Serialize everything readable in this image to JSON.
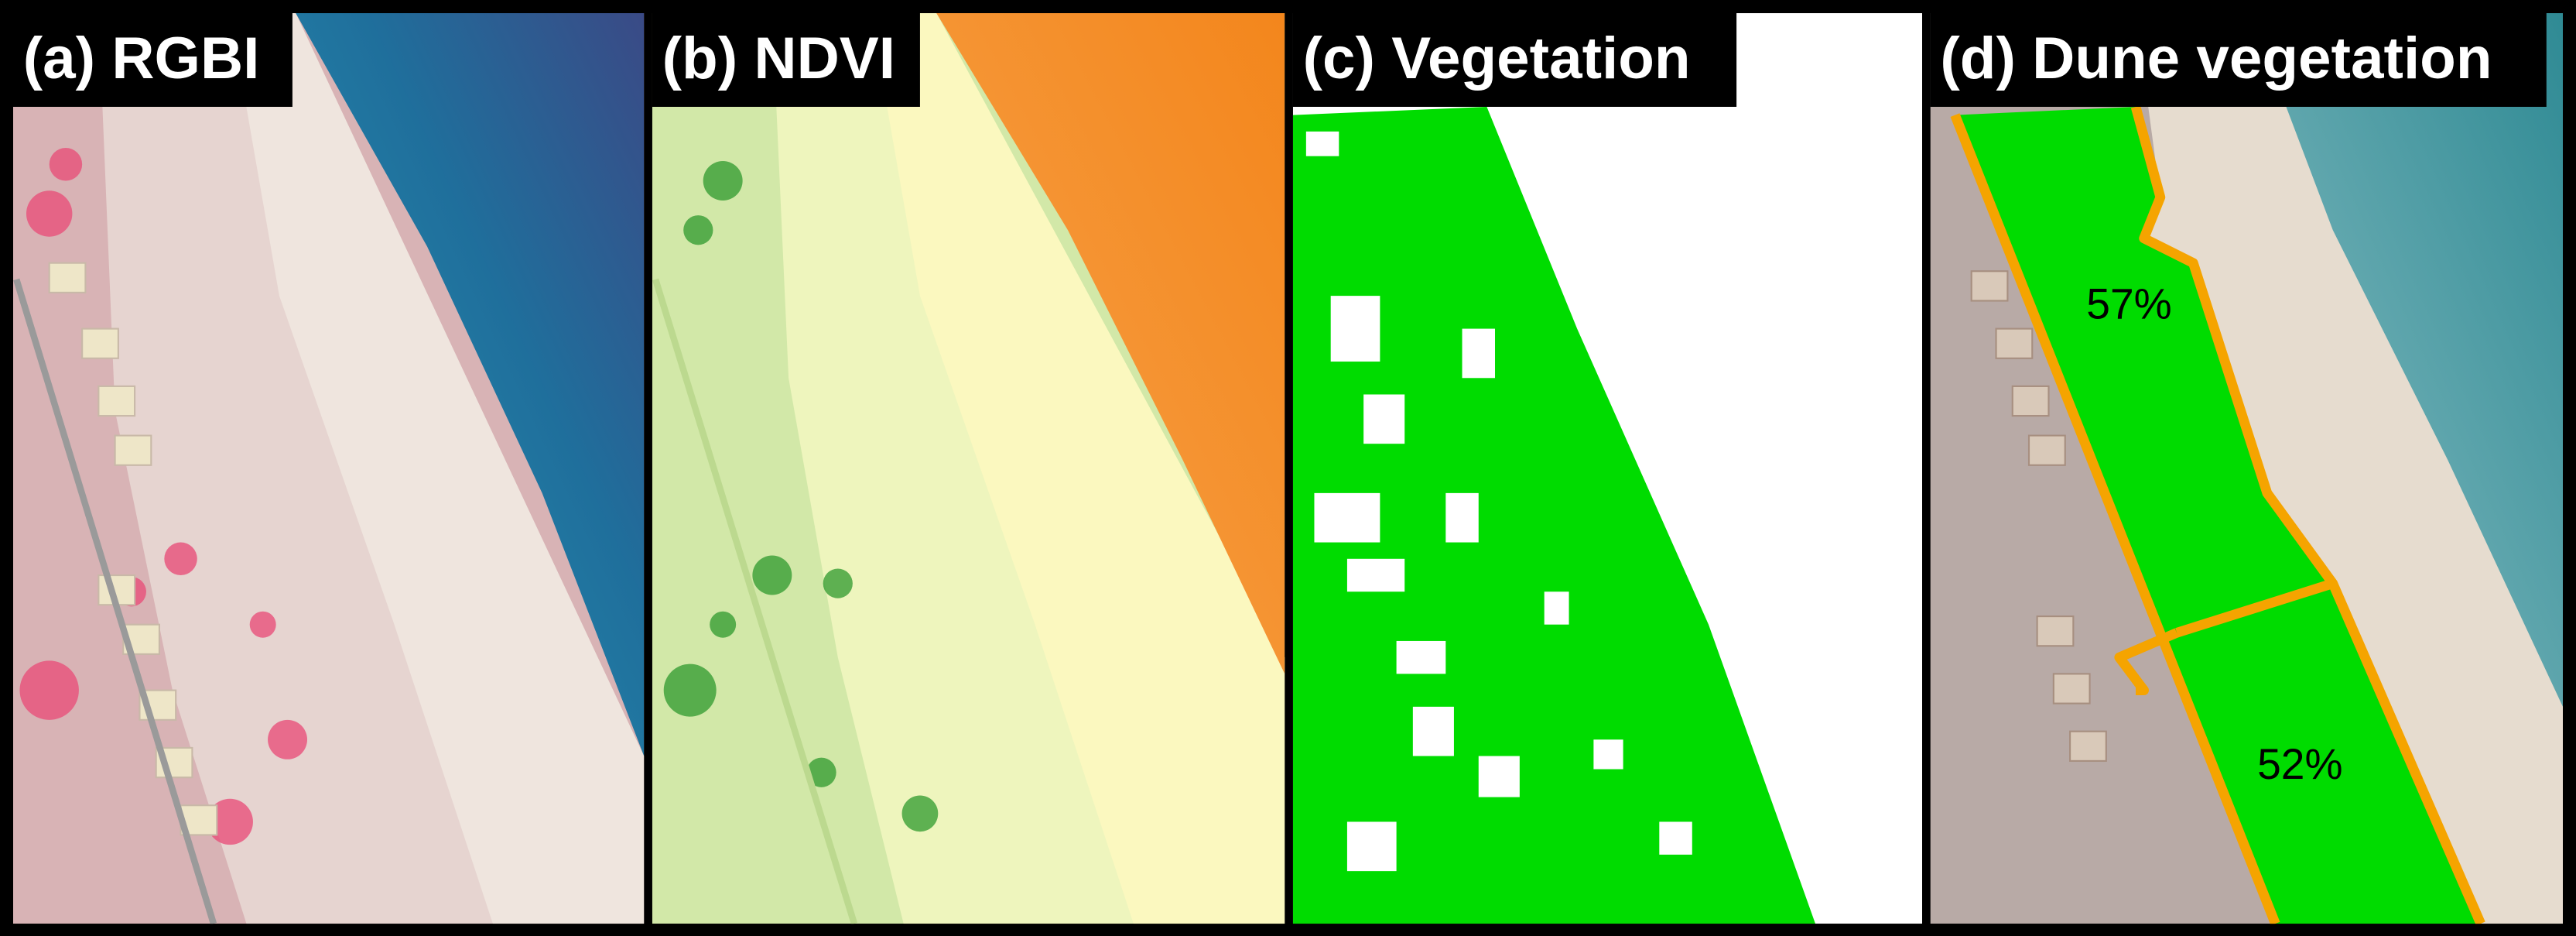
{
  "panels": [
    {
      "label": "(a) RGBI"
    },
    {
      "label": "(b) NDVI"
    },
    {
      "label": "(c) Vegetation"
    },
    {
      "label": "(d) Dune vegetation"
    }
  ],
  "annotations": [
    {
      "text": "57%"
    },
    {
      "text": "52%"
    }
  ]
}
